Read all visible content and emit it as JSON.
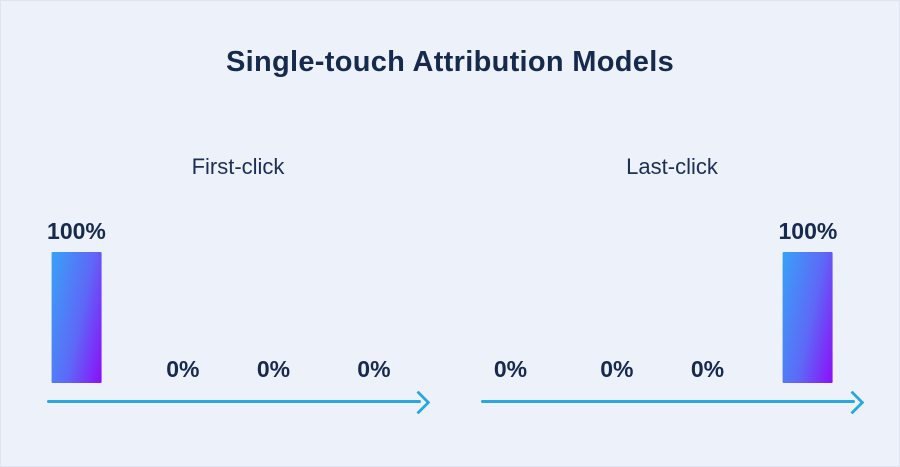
{
  "title": "Single-touch Attribution Models",
  "colors": {
    "background": "#EDF1F9",
    "text_navy": "#16294E",
    "axis_arrow": "#28A8DD",
    "bar_gradient_start": "#38A1F8",
    "bar_gradient_end": "#8C0EF8"
  },
  "chart_data": [
    {
      "type": "bar",
      "title": "First-click",
      "values": [
        100,
        0,
        0,
        0
      ],
      "value_labels": [
        "100%",
        "0%",
        "0%",
        "0%"
      ],
      "unit": "%",
      "ylim": [
        0,
        100
      ],
      "x_axis": "rightward arrow, no tick labels",
      "grid": false,
      "legend": false,
      "bar_style": "blue-to-purple gradient"
    },
    {
      "type": "bar",
      "title": "Last-click",
      "values": [
        0,
        0,
        0,
        100
      ],
      "value_labels": [
        "0%",
        "0%",
        "0%",
        "100%"
      ],
      "unit": "%",
      "ylim": [
        0,
        100
      ],
      "x_axis": "rightward arrow, no tick labels",
      "grid": false,
      "legend": false,
      "bar_style": "blue-to-purple gradient"
    }
  ]
}
